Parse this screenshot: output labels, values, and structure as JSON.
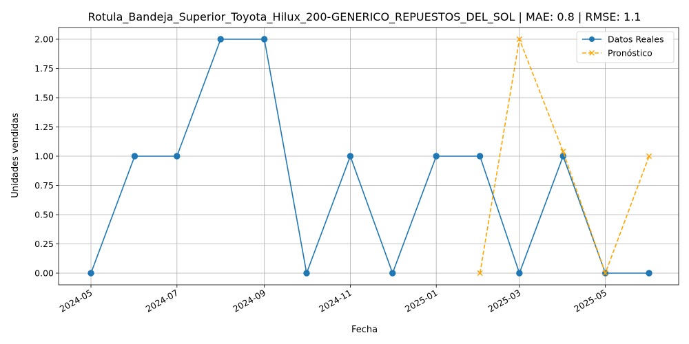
{
  "chart_data": {
    "type": "line",
    "title": "Rotula_Bandeja_Superior_Toyota_Hilux_200-GENERICO_REPUESTOS_DEL_SOL | MAE: 0.8 | RMSE: 1.1",
    "xlabel": "Fecha",
    "ylabel": "Unidades vendidas",
    "x_type": "date",
    "xlim": [
      "2024-04-08",
      "2025-06-22"
    ],
    "ylim": [
      -0.1,
      2.1
    ],
    "yticks": [
      0.0,
      0.25,
      0.5,
      0.75,
      1.0,
      1.25,
      1.5,
      1.75,
      2.0
    ],
    "ytick_labels": [
      "0.00",
      "0.25",
      "0.50",
      "0.75",
      "1.00",
      "1.25",
      "1.50",
      "1.75",
      "2.00"
    ],
    "xticks": [
      "2024-05-01",
      "2024-07-01",
      "2024-09-01",
      "2024-11-01",
      "2025-01-01",
      "2025-03-01",
      "2025-05-01"
    ],
    "xtick_labels": [
      "2024-05",
      "2024-07",
      "2024-09",
      "2024-11",
      "2025-01",
      "2025-03",
      "2025-05"
    ],
    "grid": true,
    "legend_position": "top-right",
    "series": [
      {
        "name": "Datos Reales",
        "color": "#1f77b4",
        "style": "solid",
        "marker": "circle",
        "x": [
          "2024-05-01",
          "2024-06-01",
          "2024-07-01",
          "2024-08-01",
          "2024-09-01",
          "2024-10-01",
          "2024-11-01",
          "2024-12-01",
          "2025-01-01",
          "2025-02-01",
          "2025-03-01",
          "2025-04-01",
          "2025-05-01",
          "2025-06-01"
        ],
        "values": [
          0,
          1,
          1,
          2,
          2,
          0,
          1,
          0,
          1,
          1,
          0,
          1,
          0,
          0
        ]
      },
      {
        "name": "Pronóstico",
        "color": "#ffa500",
        "style": "dashed",
        "marker": "x",
        "x": [
          "2025-02-01",
          "2025-03-01",
          "2025-04-01",
          "2025-05-01",
          "2025-06-01"
        ],
        "values": [
          0.0,
          2.0,
          1.04,
          0.0,
          1.0
        ]
      }
    ]
  }
}
